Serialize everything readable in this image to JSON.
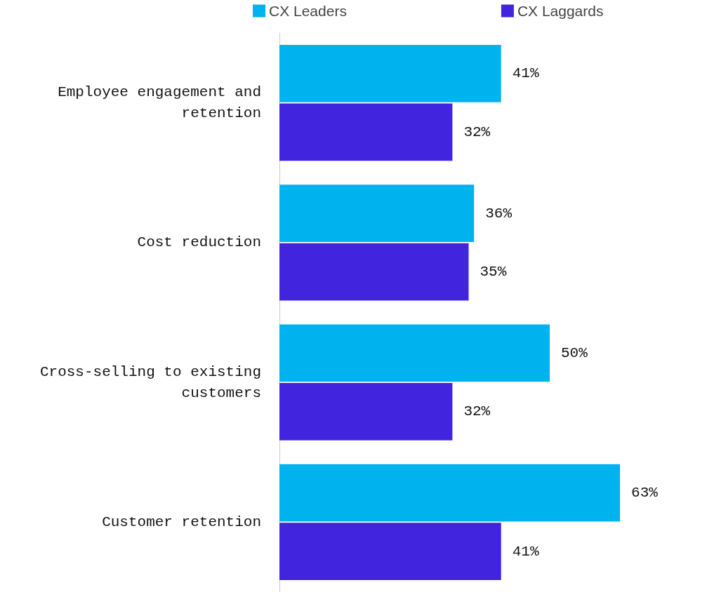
{
  "chart_data": {
    "type": "bar",
    "orientation": "horizontal",
    "categories": [
      "Employee engagement and\nretention",
      "Cost reduction",
      "Cross-selling to existing\ncustomers",
      "Customer retention"
    ],
    "series": [
      {
        "name": "CX Leaders",
        "color": "#00b3ee",
        "values": [
          41,
          36,
          50,
          63
        ],
        "value_labels": [
          "41%",
          "36%",
          "50%",
          "63%"
        ]
      },
      {
        "name": "CX Laggards",
        "color": "#4125de",
        "values": [
          32,
          35,
          32,
          41
        ],
        "value_labels": [
          "32%",
          "35%",
          "32%",
          "41%"
        ]
      }
    ],
    "legend": "top",
    "grid": false
  }
}
